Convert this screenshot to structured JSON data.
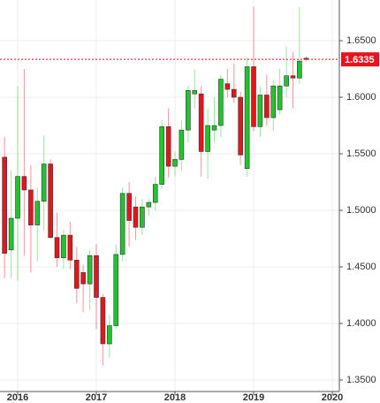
{
  "chart_data": {
    "type": "candlestick",
    "x": [
      2015.833,
      2015.917,
      2016.0,
      2016.083,
      2016.167,
      2016.25,
      2016.333,
      2016.417,
      2016.5,
      2016.583,
      2016.667,
      2016.75,
      2016.833,
      2016.917,
      2017.0,
      2017.083,
      2017.167,
      2017.25,
      2017.333,
      2017.417,
      2017.5,
      2017.583,
      2017.667,
      2017.75,
      2017.833,
      2017.917,
      2018.0,
      2018.083,
      2018.167,
      2018.25,
      2018.333,
      2018.417,
      2018.5,
      2018.583,
      2018.667,
      2018.75,
      2018.833,
      2018.917,
      2019.0,
      2019.083,
      2019.167,
      2019.25,
      2019.333,
      2019.417,
      2019.5,
      2019.583,
      2019.667
    ],
    "open": [
      1.547,
      1.465,
      1.493,
      1.53,
      1.518,
      1.487,
      1.508,
      1.541,
      1.476,
      1.458,
      1.478,
      1.456,
      1.445,
      1.435,
      1.46,
      1.423,
      1.382,
      1.398,
      1.461,
      1.515,
      1.503,
      1.485,
      1.503,
      1.507,
      1.523,
      1.574,
      1.539,
      1.545,
      1.571,
      1.603,
      1.603,
      1.552,
      1.571,
      1.575,
      1.612,
      1.607,
      1.6,
      1.537,
      1.627,
      1.574,
      1.602,
      1.582,
      1.589,
      1.61,
      1.619,
      1.617,
      1.6345
    ],
    "high": [
      1.565,
      1.535,
      1.61,
      1.625,
      1.54,
      1.52,
      1.566,
      1.545,
      1.498,
      1.483,
      1.49,
      1.468,
      1.452,
      1.465,
      1.47,
      1.426,
      1.408,
      1.47,
      1.52,
      1.525,
      1.512,
      1.51,
      1.51,
      1.53,
      1.58,
      1.59,
      1.552,
      1.58,
      1.61,
      1.625,
      1.61,
      1.59,
      1.6,
      1.62,
      1.625,
      1.63,
      1.605,
      1.635,
      1.68,
      1.61,
      1.62,
      1.615,
      1.625,
      1.645,
      1.64,
      1.68,
      1.636
    ],
    "low": [
      1.44,
      1.44,
      1.438,
      1.46,
      1.445,
      1.455,
      1.482,
      1.475,
      1.45,
      1.448,
      1.448,
      1.418,
      1.41,
      1.412,
      1.395,
      1.363,
      1.37,
      1.395,
      1.455,
      1.468,
      1.474,
      1.478,
      1.495,
      1.5,
      1.52,
      1.529,
      1.53,
      1.535,
      1.56,
      1.59,
      1.53,
      1.528,
      1.56,
      1.565,
      1.6,
      1.595,
      1.54,
      1.53,
      1.57,
      1.565,
      1.575,
      1.57,
      1.585,
      1.6,
      1.59,
      1.612,
      1.632
    ],
    "close": [
      1.462,
      1.493,
      1.53,
      1.518,
      1.487,
      1.508,
      1.541,
      1.476,
      1.458,
      1.478,
      1.456,
      1.431,
      1.435,
      1.46,
      1.423,
      1.382,
      1.398,
      1.461,
      1.515,
      1.491,
      1.485,
      1.503,
      1.507,
      1.523,
      1.574,
      1.539,
      1.545,
      1.571,
      1.606,
      1.606,
      1.552,
      1.575,
      1.575,
      1.616,
      1.607,
      1.6,
      1.549,
      1.627,
      1.574,
      1.602,
      1.582,
      1.61,
      1.61,
      1.619,
      1.617,
      1.632,
      1.6335
    ],
    "up_color": "#22c32e",
    "down_color": "#e8141b",
    "xlim": [
      2015.775,
      2020.09
    ],
    "xticks": [
      2016,
      2017,
      2018,
      2019,
      2020
    ],
    "ylim": [
      1.3398,
      1.686
    ],
    "yticks": [
      {
        "value": 1.35,
        "label": "1.3500"
      },
      {
        "value": 1.4,
        "label": "1.4000"
      },
      {
        "value": 1.45,
        "label": "1.4500"
      },
      {
        "value": 1.5,
        "label": "1.5000"
      },
      {
        "value": 1.55,
        "label": "1.5500"
      },
      {
        "value": 1.6,
        "label": "1.6000"
      },
      {
        "value": 1.65,
        "label": "1.6500"
      }
    ],
    "grid": true,
    "current_price": {
      "value": 1.6335,
      "label": "1.6335",
      "color": "#e8141b"
    }
  }
}
